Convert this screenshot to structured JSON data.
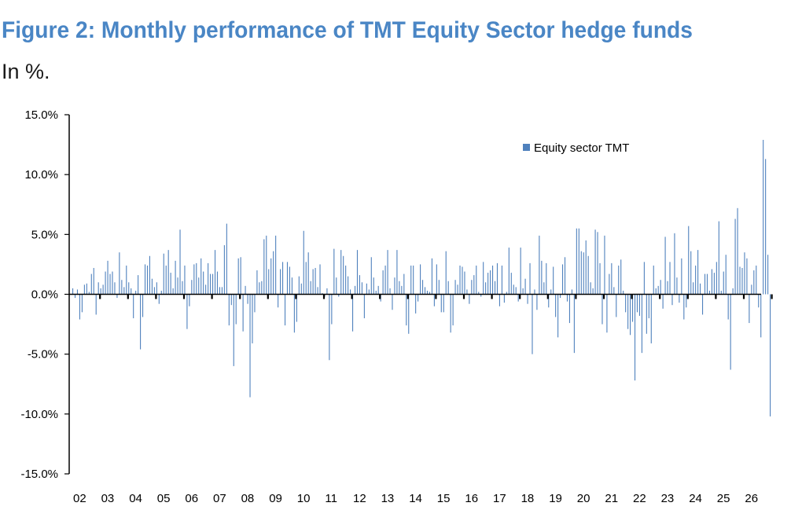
{
  "title": "Figure 2: Monthly performance of TMT Equity Sector hedge funds",
  "subtitle": "In %.",
  "chart_data": {
    "type": "bar",
    "title": "Figure 2: Monthly performance of TMT Equity Sector hedge funds",
    "subtitle": "In %.",
    "xlabel": "",
    "ylabel": "",
    "ylim": [
      -15,
      15
    ],
    "y_ticks": [
      "15.0%",
      "10.0%",
      "5.0%",
      "0.0%",
      "-5.0%",
      "-10.0%",
      "-15.0%"
    ],
    "y_tick_values": [
      15,
      10,
      5,
      0,
      -5,
      -10,
      -15
    ],
    "x_tick_labels": [
      "02",
      "03",
      "04",
      "05",
      "06",
      "07",
      "08",
      "09",
      "10",
      "11",
      "12",
      "13",
      "14",
      "15",
      "16",
      "17",
      "18",
      "19",
      "20",
      "21",
      "22",
      "23",
      "24",
      "25",
      "26"
    ],
    "grid": false,
    "legend_position": "top-right",
    "bar_color": "#4f81bd",
    "series": [
      {
        "name": "Equity sector TMT",
        "start": "2002-01",
        "values": [
          0.5,
          -0.3,
          0.4,
          -2.1,
          -1.5,
          0.8,
          0.9,
          0.2,
          1.7,
          2.2,
          -1.7,
          1.0,
          0.5,
          0.8,
          1.9,
          2.8,
          1.7,
          1.9,
          1.0,
          -0.3,
          3.5,
          1.2,
          0.6,
          2.4,
          1.0,
          0.5,
          -2.0,
          0.3,
          1.6,
          -4.6,
          -1.9,
          2.5,
          2.4,
          3.2,
          1.3,
          0.6,
          1.0,
          -0.8,
          0.3,
          3.4,
          2.4,
          3.7,
          1.8,
          0.5,
          2.8,
          1.4,
          5.4,
          1.1,
          2.4,
          -2.9,
          -1.0,
          1.2,
          2.5,
          2.6,
          1.4,
          3.0,
          1.9,
          0.8,
          2.6,
          1.7,
          1.7,
          3.7,
          1.9,
          0.6,
          0.6,
          4.1,
          5.9,
          -2.6,
          -0.9,
          -6.0,
          -2.5,
          3.0,
          3.1,
          -3.1,
          0.7,
          -0.8,
          -8.6,
          -4.1,
          -1.5,
          2.0,
          1.0,
          1.1,
          4.6,
          4.9,
          2.1,
          3.0,
          3.6,
          4.9,
          -1.1,
          2.1,
          2.7,
          -2.6,
          2.7,
          2.3,
          1.4,
          -3.2,
          -2.3,
          1.5,
          0.9,
          5.3,
          2.7,
          3.5,
          1.1,
          2.1,
          2.2,
          0.6,
          2.5,
          0.1,
          -0.2,
          0.5,
          -5.5,
          -2.5,
          3.8,
          1.4,
          -0.2,
          3.7,
          3.2,
          2.4,
          1.5,
          0.4,
          -3.1,
          0.7,
          3.7,
          1.6,
          1.0,
          -2.0,
          0.9,
          0.4,
          3.1,
          1.4,
          0.3,
          0.7,
          -0.6,
          2.0,
          2.4,
          3.7,
          0.5,
          -1.3,
          1.4,
          3.7,
          1.1,
          0.7,
          1.7,
          -2.6,
          -3.3,
          2.4,
          2.4,
          -1.6,
          -0.6,
          2.5,
          1.2,
          0.6,
          0.3,
          0.2,
          3.0,
          -1.0,
          2.5,
          1.2,
          -1.5,
          -1.5,
          3.6,
          1.1,
          -3.2,
          -2.6,
          1.2,
          0.8,
          2.4,
          2.3,
          1.9,
          0.4,
          -0.8,
          1.2,
          1.6,
          2.4,
          0.2,
          -0.2,
          2.7,
          1.0,
          1.8,
          2.0,
          2.4,
          1.1,
          2.6,
          -1.0,
          2.4,
          -0.7,
          0.2,
          3.9,
          1.8,
          0.8,
          0.6,
          -0.6,
          3.9,
          0.5,
          1.3,
          -0.8,
          2.6,
          -5.0,
          0.4,
          -1.3,
          4.9,
          2.8,
          1.0,
          2.6,
          -1.1,
          0.4,
          2.3,
          -1.9,
          -3.6,
          -0.3,
          2.5,
          3.1,
          -0.6,
          -2.4,
          0.4,
          -4.9,
          5.5,
          5.5,
          3.6,
          3.5,
          4.5,
          3.2,
          1.0,
          0.5,
          5.4,
          5.2,
          2.6,
          -2.5,
          4.9,
          -3.2,
          1.7,
          2.6,
          0.6,
          -1.9,
          2.4,
          2.9,
          0.3,
          -1.5,
          -2.9,
          -3.4,
          -2.3,
          -7.2,
          -1.5,
          -1.8,
          -4.9,
          2.7,
          -3.3,
          -2.0,
          -4.1,
          2.4,
          0.5,
          0.7,
          1.2,
          -1.2,
          4.8,
          1.1,
          2.7,
          -0.9,
          5.1,
          1.4,
          -0.7,
          3.0,
          -2.1,
          -1.1,
          5.7,
          3.6,
          1.0,
          2.4,
          3.7,
          0.9,
          -1.7,
          1.7,
          1.7,
          0.3,
          2.1,
          1.8,
          2.7,
          6.1,
          0.3,
          1.9,
          3.3,
          -2.1,
          -6.3,
          0.5,
          6.3,
          7.2,
          2.3,
          2.2,
          3.5,
          3.0,
          -2.4,
          0.8,
          2.0,
          2.4,
          -1.1,
          -3.6,
          12.9,
          11.3,
          3.3,
          -10.2
        ]
      }
    ]
  }
}
